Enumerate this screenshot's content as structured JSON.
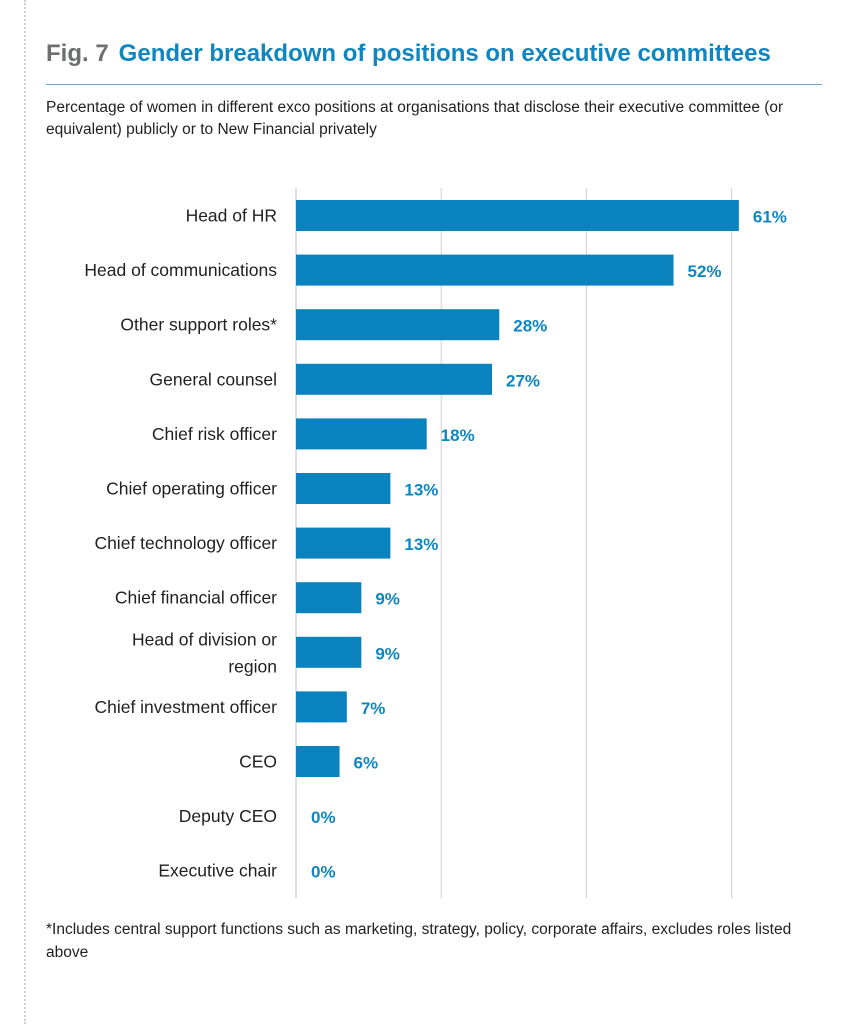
{
  "figure": {
    "number": "Fig. 7",
    "title": "Gender breakdown of positions on executive committees",
    "subtitle": "Percentage of women in different exco positions at organisations that disclose their executive committee (or equivalent) publicly or to New Financial privately",
    "footnote": "*Includes central support functions such as marketing, strategy, policy, corporate affairs, excludes roles listed above"
  },
  "colors": {
    "bar": "#0a82bd",
    "label": "#0f86bf",
    "title": "#0f86bf",
    "fig_number": "#6d6e71",
    "gridline": "#d0d0d0"
  },
  "chart_data": {
    "type": "bar",
    "orientation": "horizontal",
    "categories": [
      "Head of HR",
      "Head of communications",
      "Other support roles*",
      "General counsel",
      "Chief risk officer",
      "Chief operating officer",
      "Chief technology officer",
      "Chief financial officer",
      "Head of division or region",
      "Chief investment officer",
      "CEO",
      "Deputy CEO",
      "Executive chair"
    ],
    "values": [
      61,
      52,
      28,
      27,
      18,
      13,
      13,
      9,
      9,
      7,
      6,
      0,
      0
    ],
    "value_labels": [
      "61%",
      "52%",
      "28%",
      "27%",
      "18%",
      "13%",
      "13%",
      "9%",
      "9%",
      "7%",
      "6%",
      "0%",
      "0%"
    ],
    "xlim": [
      0,
      60
    ],
    "grid": true,
    "legend": "none"
  }
}
